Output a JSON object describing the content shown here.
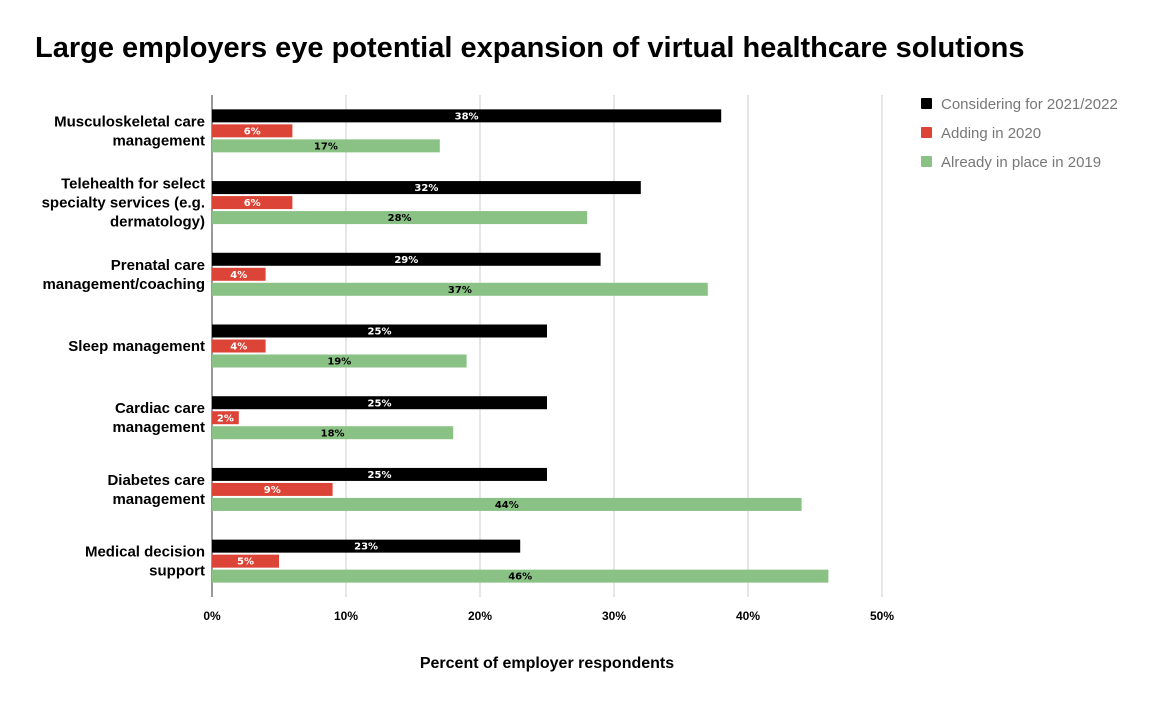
{
  "chart_data": {
    "type": "bar",
    "orientation": "horizontal",
    "title": "Large employers eye potential expansion of virtual healthcare solutions",
    "xlabel": "Percent of employer respondents",
    "ylabel": "",
    "xlim": [
      0,
      50
    ],
    "x_ticks": [
      "0%",
      "10%",
      "20%",
      "30%",
      "40%",
      "50%"
    ],
    "grid": true,
    "legend_position": "right",
    "categories": [
      [
        "Musculoskeletal care",
        "management"
      ],
      [
        "Telehealth for select",
        "specialty services (e.g.",
        "dermatology)"
      ],
      [
        "Prenatal care",
        "management/coaching"
      ],
      [
        "Sleep management"
      ],
      [
        "Cardiac care",
        "management"
      ],
      [
        "Diabetes care",
        "management"
      ],
      [
        "Medical decision",
        "support"
      ]
    ],
    "series": [
      {
        "name": "Considering for 2021/2022",
        "color": "#000000",
        "label_color": "#ffffff",
        "values": [
          38,
          32,
          29,
          25,
          25,
          25,
          23
        ],
        "labels": [
          "38%",
          "32%",
          "29%",
          "25%",
          "25%",
          "25%",
          "23%"
        ]
      },
      {
        "name": "Adding in 2020",
        "color": "#db4437",
        "label_color": "#ffffff",
        "values": [
          6,
          6,
          4,
          4,
          2,
          9,
          5
        ],
        "labels": [
          "6%",
          "6%",
          "4%",
          "4%",
          "2%",
          "9%",
          "5%"
        ]
      },
      {
        "name": "Already in place in 2019",
        "color": "#8ac285",
        "label_color": "#000000",
        "values": [
          17,
          28,
          37,
          19,
          18,
          44,
          46
        ],
        "labels": [
          "17%",
          "28%",
          "37%",
          "19%",
          "18%",
          "44%",
          "46%"
        ]
      }
    ]
  }
}
